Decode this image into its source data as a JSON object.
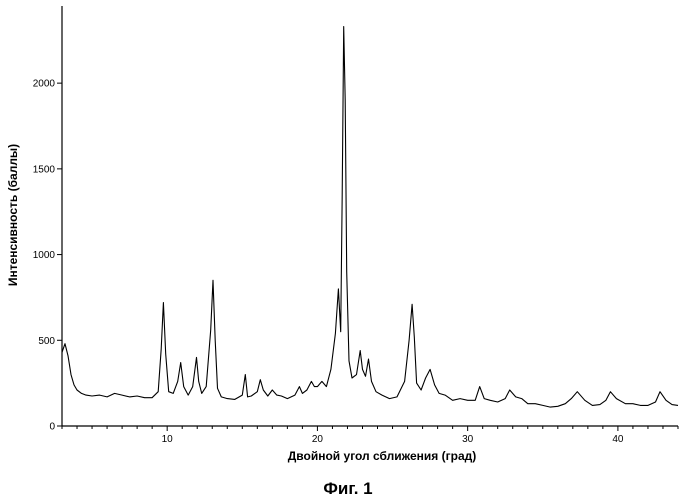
{
  "chart_data": {
    "type": "line",
    "title": "",
    "xlabel": "Двойной угол сближения (град)",
    "ylabel": "Интенсивность (баллы)",
    "xlim": [
      3,
      44
    ],
    "ylim": [
      0,
      2450
    ],
    "x_ticks": [
      10,
      20,
      30,
      40
    ],
    "y_ticks": [
      0,
      500,
      1000,
      1500,
      2000
    ],
    "grid": false,
    "legend": "none",
    "line_color": "#000000",
    "series": [
      {
        "x": [
          3.0,
          3.2,
          3.4,
          3.6,
          3.8,
          4.0,
          4.3,
          4.6,
          5.0,
          5.5,
          6.0,
          6.5,
          7.0,
          7.5,
          8.0,
          8.5,
          9.0,
          9.4,
          9.6,
          9.75,
          9.9,
          10.1,
          10.4,
          10.7,
          10.9,
          11.1,
          11.4,
          11.7,
          11.95,
          12.1,
          12.3,
          12.6,
          12.9,
          13.05,
          13.2,
          13.35,
          13.6,
          14.0,
          14.5,
          15.0,
          15.2,
          15.35,
          15.6,
          16.0,
          16.2,
          16.4,
          16.7,
          17.0,
          17.3,
          17.6,
          18.0,
          18.5,
          18.8,
          19.0,
          19.3,
          19.6,
          19.8,
          20.0,
          20.3,
          20.6,
          20.9,
          21.2,
          21.4,
          21.55,
          21.65,
          21.75,
          21.85,
          21.95,
          22.1,
          22.3,
          22.6,
          22.85,
          23.0,
          23.2,
          23.4,
          23.6,
          23.9,
          24.3,
          24.8,
          25.3,
          25.8,
          26.1,
          26.3,
          26.45,
          26.6,
          26.9,
          27.2,
          27.5,
          27.8,
          28.1,
          28.5,
          29.0,
          29.5,
          30.0,
          30.5,
          30.8,
          31.1,
          31.5,
          32.0,
          32.5,
          32.8,
          33.2,
          33.6,
          34.0,
          34.5,
          35.0,
          35.5,
          36.0,
          36.5,
          36.9,
          37.3,
          37.8,
          38.3,
          38.8,
          39.2,
          39.5,
          39.9,
          40.5,
          41.0,
          41.5,
          42.0,
          42.5,
          42.8,
          43.2,
          43.6,
          44.0
        ],
        "y": [
          430,
          480,
          410,
          300,
          240,
          210,
          190,
          180,
          175,
          180,
          170,
          190,
          180,
          170,
          175,
          165,
          165,
          200,
          450,
          720,
          420,
          200,
          190,
          260,
          370,
          230,
          180,
          230,
          400,
          260,
          190,
          230,
          560,
          850,
          500,
          220,
          170,
          160,
          155,
          180,
          300,
          170,
          175,
          200,
          270,
          210,
          175,
          210,
          180,
          175,
          160,
          180,
          230,
          190,
          210,
          260,
          230,
          230,
          260,
          230,
          330,
          540,
          800,
          550,
          1350,
          2330,
          1900,
          900,
          380,
          280,
          300,
          440,
          330,
          290,
          390,
          260,
          200,
          180,
          160,
          170,
          260,
          500,
          710,
          520,
          250,
          210,
          280,
          330,
          240,
          190,
          180,
          150,
          160,
          150,
          150,
          230,
          160,
          150,
          140,
          160,
          210,
          170,
          160,
          130,
          130,
          120,
          110,
          115,
          130,
          160,
          200,
          150,
          120,
          125,
          150,
          200,
          160,
          130,
          130,
          120,
          120,
          140,
          200,
          150,
          125,
          120
        ]
      }
    ]
  },
  "figure_caption": "Фиг. 1"
}
